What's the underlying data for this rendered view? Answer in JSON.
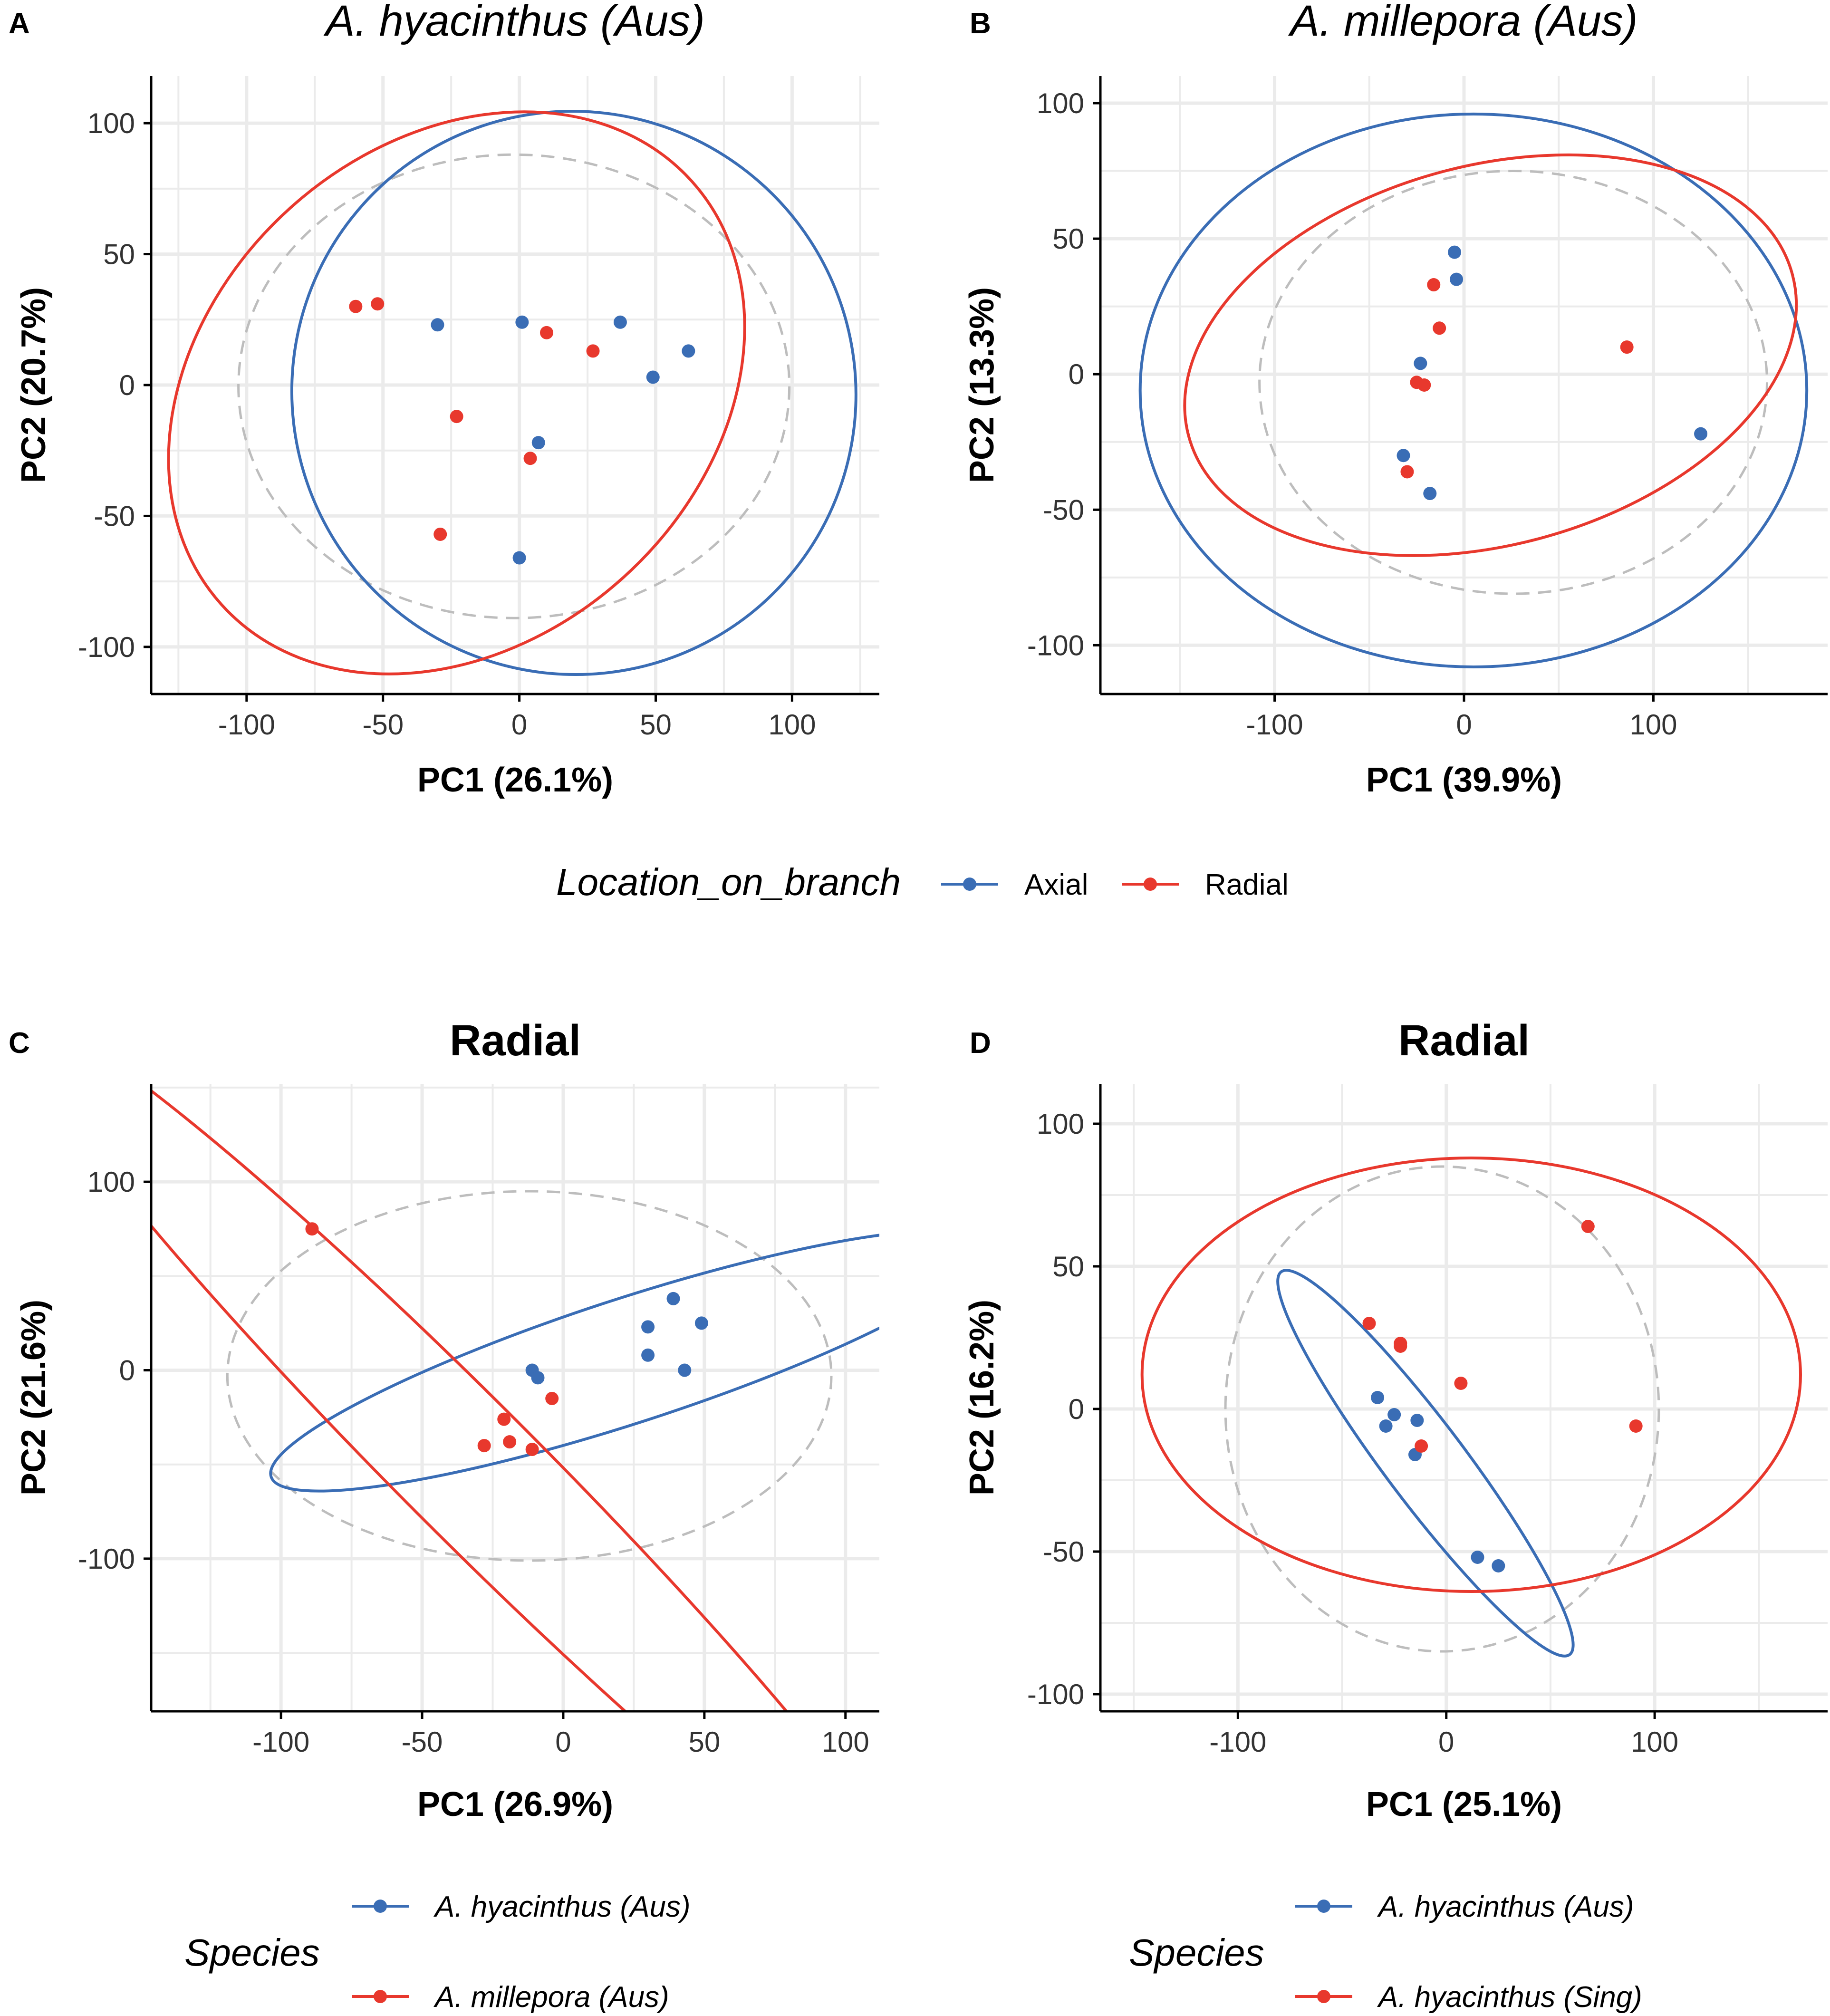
{
  "colors": {
    "blue": "#3a6db5",
    "red": "#e8382d",
    "gray": "#bdbdbd",
    "grid": "#ebebeb",
    "axis": "#000000",
    "tick_text": "#333333"
  },
  "legend_location": {
    "title": "Location_on_branch",
    "items": [
      {
        "label": "Axial",
        "color": "#3a6db5"
      },
      {
        "label": "Radial",
        "color": "#e8382d"
      }
    ]
  },
  "legend_species_c": {
    "title": "Species",
    "items": [
      {
        "label": "A. hyacinthus (Aus)",
        "color": "#3a6db5"
      },
      {
        "label": "A. millepora (Aus)",
        "color": "#e8382d"
      }
    ]
  },
  "legend_species_d": {
    "title": "Species",
    "items": [
      {
        "label": "A. hyacinthus (Aus)",
        "color": "#3a6db5"
      },
      {
        "label": "A. hyacinthus (Sing)",
        "color": "#e8382d"
      }
    ]
  },
  "chart_data": [
    {
      "panel": "A",
      "type": "scatter",
      "title": "A. hyacinthus (Aus)",
      "title_italic": true,
      "xlabel": "PC1 (26.1%)",
      "ylabel": "PC2 (20.7%)",
      "xlim": [
        -135,
        132
      ],
      "ylim": [
        -118,
        118
      ],
      "xticks": [
        -100,
        -50,
        0,
        50,
        100
      ],
      "xtick_labels": [
        "-100",
        "-50",
        "0",
        "50",
        "100"
      ],
      "yticks": [
        -100,
        -50,
        0,
        50,
        100
      ],
      "ytick_labels": [
        "-100",
        "-50",
        "0",
        "50",
        "100"
      ],
      "grid": true,
      "series": [
        {
          "name": "Axial",
          "color": "#3a6db5",
          "points": [
            [
              -30,
              23
            ],
            [
              1,
              24
            ],
            [
              37,
              24
            ],
            [
              62,
              13
            ],
            [
              49,
              3
            ],
            [
              7,
              -22
            ],
            [
              0,
              -66
            ]
          ],
          "ellipse": {
            "center": [
              20,
              -3
            ],
            "rx": 103,
            "ry": 108,
            "angle": -52
          }
        },
        {
          "name": "Radial",
          "color": "#e8382d",
          "points": [
            [
              -60,
              30
            ],
            [
              -52,
              31
            ],
            [
              10,
              20
            ],
            [
              27,
              13
            ],
            [
              -23,
              -12
            ],
            [
              4,
              -28
            ],
            [
              -29,
              -57
            ]
          ],
          "ellipse": {
            "center": [
              -23,
              -3
            ],
            "rx": 116,
            "ry": 95,
            "angle": -42
          }
        }
      ],
      "reference_ellipse": {
        "center": [
          -2,
          -0.5
        ],
        "rx": 101,
        "ry": 88.5,
        "angle": 0
      }
    },
    {
      "panel": "B",
      "type": "scatter",
      "title": "A. millepora (Aus)",
      "title_italic": true,
      "xlabel": "PC1 (39.9%)",
      "ylabel": "PC2 (13.3%)",
      "xlim": [
        -192,
        192
      ],
      "ylim": [
        -118,
        110
      ],
      "xticks": [
        -100,
        0,
        100
      ],
      "xtick_labels": [
        "-100",
        "0",
        "100"
      ],
      "yticks": [
        -100,
        -50,
        0,
        50,
        100
      ],
      "ytick_labels": [
        "-100",
        "-50",
        "0",
        "50",
        "100"
      ],
      "grid": true,
      "series": [
        {
          "name": "Axial",
          "color": "#3a6db5",
          "points": [
            [
              -5,
              45
            ],
            [
              -4,
              35
            ],
            [
              -23,
              4
            ],
            [
              -32,
              -30
            ],
            [
              -18,
              -44
            ],
            [
              125,
              -22
            ]
          ],
          "ellipse": {
            "center": [
              5,
              -6
            ],
            "rx": 176,
            "ry": 102,
            "angle": 0
          }
        },
        {
          "name": "Radial",
          "color": "#e8382d",
          "points": [
            [
              -16,
              33
            ],
            [
              -13,
              17
            ],
            [
              -25,
              -3
            ],
            [
              -21,
              -4
            ],
            [
              -30,
              -36
            ],
            [
              86,
              10
            ]
          ],
          "ellipse": {
            "center": [
              14,
              7
            ],
            "rx": 165,
            "ry": 70,
            "angle": -15
          }
        }
      ],
      "reference_ellipse": {
        "center": [
          26,
          -3
        ],
        "rx": 134,
        "ry": 78,
        "angle": 0
      }
    },
    {
      "panel": "C",
      "type": "scatter",
      "title": "Radial",
      "title_italic": false,
      "xlabel": "PC1 (26.9%)",
      "ylabel": "PC2 (21.6%)",
      "xlim": [
        -146,
        112
      ],
      "ylim": [
        -181,
        152
      ],
      "xticks": [
        -100,
        -50,
        0,
        50,
        100
      ],
      "xtick_labels": [
        "-100",
        "-50",
        "0",
        "50",
        "100"
      ],
      "yticks": [
        -100,
        0,
        100
      ],
      "ytick_labels": [
        "-100",
        "0",
        "100"
      ],
      "grid": true,
      "series": [
        {
          "name": "A. hyacinthus (Aus)",
          "color": "#3a6db5",
          "points": [
            [
              39,
              38
            ],
            [
              49,
              25
            ],
            [
              30,
              23
            ],
            [
              30,
              8
            ],
            [
              43,
              0
            ],
            [
              -11,
              0
            ],
            [
              -9,
              -4
            ]
          ],
          "ellipse": {
            "center": [
              23,
              5
            ],
            "rx": 133,
            "ry": 33,
            "angle": -18
          }
        },
        {
          "name": "A. millepora (Aus)",
          "color": "#e8382d",
          "points": [
            [
              -89,
              75
            ],
            [
              -4,
              -15
            ],
            [
              -21,
              -26
            ],
            [
              -28,
              -40
            ],
            [
              -19,
              -38
            ],
            [
              -11,
              -42
            ]
          ],
          "ellipse": {
            "center": [
              -33,
              -53
            ],
            "rx": 225,
            "ry": 36,
            "angle": 45
          }
        }
      ],
      "reference_ellipse": {
        "center": [
          -12,
          -3
        ],
        "rx": 107,
        "ry": 98,
        "angle": 0
      }
    },
    {
      "panel": "D",
      "type": "scatter",
      "title": "Radial",
      "title_italic": false,
      "xlabel": "PC1 (25.1%)",
      "ylabel": "PC2 (16.2%)",
      "xlim": [
        -166,
        183
      ],
      "ylim": [
        -106,
        114
      ],
      "xticks": [
        -100,
        0,
        100
      ],
      "xtick_labels": [
        "-100",
        "0",
        "100"
      ],
      "yticks": [
        -100,
        -50,
        0,
        50,
        100
      ],
      "ytick_labels": [
        "-100",
        "-50",
        "0",
        "50",
        "100"
      ],
      "grid": true,
      "series": [
        {
          "name": "A. hyacinthus (Aus)",
          "color": "#3a6db5",
          "points": [
            [
              -33,
              4
            ],
            [
              -29,
              -6
            ],
            [
              -25,
              -2
            ],
            [
              -14,
              -4
            ],
            [
              -15,
              -16
            ],
            [
              15,
              -52
            ],
            [
              25,
              -55
            ]
          ],
          "ellipse": {
            "center": [
              -10,
              -19
            ],
            "rx": 115,
            "ry": 14,
            "angle": 53
          }
        },
        {
          "name": "A. hyacinthus (Sing)",
          "color": "#e8382d",
          "points": [
            [
              -37,
              30
            ],
            [
              -22,
              23
            ],
            [
              -22,
              22
            ],
            [
              68,
              64
            ],
            [
              7,
              9
            ],
            [
              91,
              -6
            ],
            [
              -12,
              -13
            ]
          ],
          "ellipse": {
            "center": [
              12,
              12
            ],
            "rx": 158,
            "ry": 76,
            "angle": 0
          }
        }
      ],
      "reference_ellipse": {
        "center": [
          -2,
          0
        ],
        "rx": 104,
        "ry": 85,
        "angle": 0
      }
    }
  ]
}
